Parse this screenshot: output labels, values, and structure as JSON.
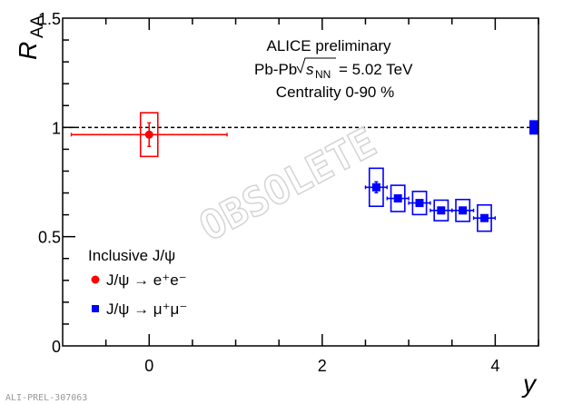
{
  "chart_data": {
    "type": "scatter",
    "xlabel": "y",
    "ylabel_main": "R",
    "ylabel_sub": "AA",
    "xlim": [
      -1,
      4.5
    ],
    "ylim": [
      0,
      1.5
    ],
    "xticks": [
      0,
      2,
      4
    ],
    "xtick_labels": [
      "0",
      "2",
      "4"
    ],
    "yticks": [
      0,
      0.5,
      1,
      1.5
    ],
    "ytick_labels": [
      "0",
      "0.5",
      "1",
      "1.5"
    ],
    "reference_line": 1,
    "annotations": {
      "line1": "ALICE preliminary",
      "line2_prefix": "Pb-Pb",
      "line2_s": "s",
      "line2_sub": "NN",
      "line2_suffix": "= 5.02 TeV",
      "line3": "Centrality 0-90 %"
    },
    "legend": {
      "title": "Inclusive J/ψ",
      "placement": "bottom-left",
      "entries": [
        "J/ψ → e⁺e⁻",
        "J/ψ → μ⁺μ⁻"
      ]
    },
    "watermark": "OBSOLETE",
    "footer_id": "ALI-PREL-307063",
    "series": [
      {
        "name": "J/ψ → e⁺e⁻",
        "color": "#ff0000",
        "marker": "circle",
        "points": [
          {
            "x": 0,
            "y": 0.967,
            "xerr": 0.9,
            "stat": 0.054,
            "syst": 0.1,
            "box_half_width": 0.1
          }
        ]
      },
      {
        "name": "J/ψ → μ⁺μ⁻",
        "color": "#0000ff",
        "marker": "square",
        "points": [
          {
            "x": 2.625,
            "y": 0.726,
            "xerr": 0.125,
            "stat": 0.025,
            "syst": 0.087,
            "box_half_width": 0.08
          },
          {
            "x": 2.875,
            "y": 0.675,
            "xerr": 0.125,
            "stat": 0.012,
            "syst": 0.06,
            "box_half_width": 0.08
          },
          {
            "x": 3.125,
            "y": 0.654,
            "xerr": 0.125,
            "stat": 0.01,
            "syst": 0.053,
            "box_half_width": 0.08
          },
          {
            "x": 3.375,
            "y": 0.62,
            "xerr": 0.125,
            "stat": 0.01,
            "syst": 0.047,
            "box_half_width": 0.08
          },
          {
            "x": 3.625,
            "y": 0.62,
            "xerr": 0.125,
            "stat": 0.01,
            "syst": 0.05,
            "box_half_width": 0.08
          },
          {
            "x": 3.875,
            "y": 0.585,
            "xerr": 0.125,
            "stat": 0.01,
            "syst": 0.06,
            "box_half_width": 0.08
          }
        ],
        "global_uncertainty": {
          "y": 1,
          "err": 0.033
        }
      }
    ]
  }
}
